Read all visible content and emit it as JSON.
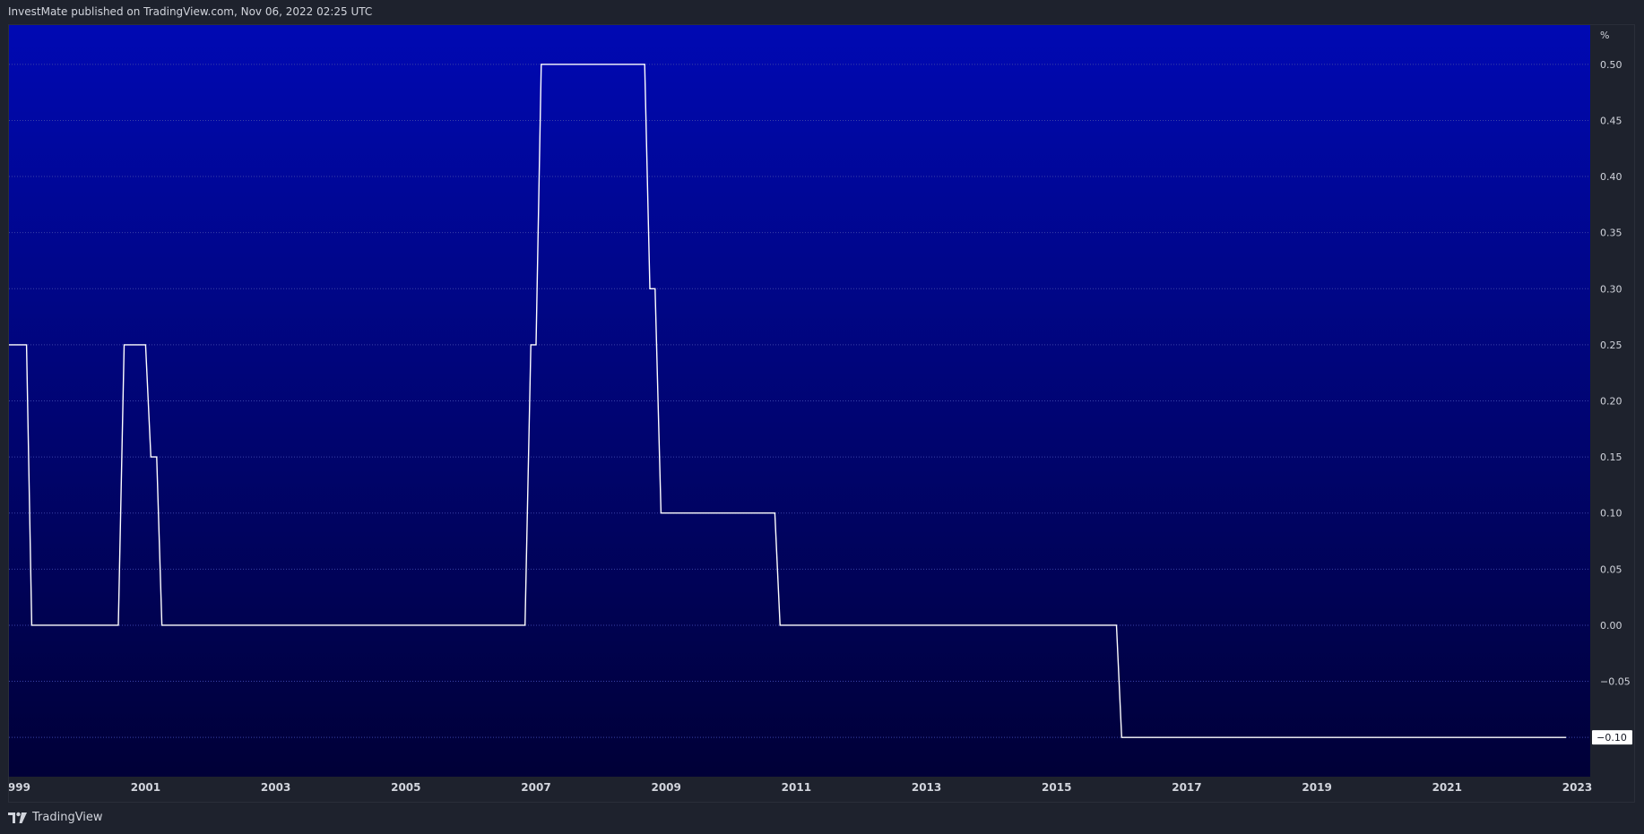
{
  "header": {
    "text": "InvestMate published on TradingView.com, Nov 06, 2022 02:25 UTC"
  },
  "footer": {
    "brand": "TradingView",
    "logo_icon": "tradingview-logo-icon"
  },
  "chart_data": {
    "type": "line",
    "title": "",
    "xlabel": "",
    "ylabel": "%",
    "unit_label": "%",
    "ylim": [
      -0.135,
      0.535
    ],
    "xlim": [
      1998.9,
      2023.2
    ],
    "yticks": [
      0.5,
      0.45,
      0.4,
      0.35,
      0.3,
      0.25,
      0.2,
      0.15,
      0.1,
      0.05,
      0.0,
      -0.05,
      -0.1
    ],
    "ytick_labels": [
      "0.50",
      "0.45",
      "0.40",
      "0.35",
      "0.30",
      "0.25",
      "0.20",
      "0.15",
      "0.10",
      "0.05",
      "0.00",
      "−0.05",
      "−0.10"
    ],
    "xticks": [
      1999,
      2001,
      2003,
      2005,
      2007,
      2009,
      2011,
      2013,
      2015,
      2017,
      2019,
      2021,
      2023
    ],
    "xtick_labels": [
      "1999",
      "2001",
      "2003",
      "2005",
      "2007",
      "2009",
      "2011",
      "2013",
      "2015",
      "2017",
      "2019",
      "2021",
      "2023"
    ],
    "grid": true,
    "last_value": -0.1,
    "last_value_label": "−0.10",
    "colors": {
      "line": "#ffffff",
      "bg_top": "#0009b3",
      "bg_bottom": "#000037",
      "grid": "#3a43a8",
      "axis_text": "#d1d4dc",
      "page_bg": "#1e222d"
    },
    "series": [
      {
        "x": [
          1998.9,
          1999.17,
          1999.25,
          2000.58,
          2000.67,
          2001.0,
          2001.08,
          2001.17,
          2001.25,
          2006.83,
          2006.92,
          2007.0,
          2007.08,
          2008.67,
          2008.75,
          2008.83,
          2008.92,
          2010.67,
          2010.75,
          2015.92,
          2016.0,
          2022.83
        ],
        "y": [
          0.25,
          0.25,
          0.0,
          0.0,
          0.25,
          0.25,
          0.15,
          0.15,
          0.0,
          0.0,
          0.25,
          0.25,
          0.5,
          0.5,
          0.3,
          0.3,
          0.1,
          0.1,
          0.0,
          0.0,
          -0.1,
          -0.1
        ]
      }
    ]
  }
}
